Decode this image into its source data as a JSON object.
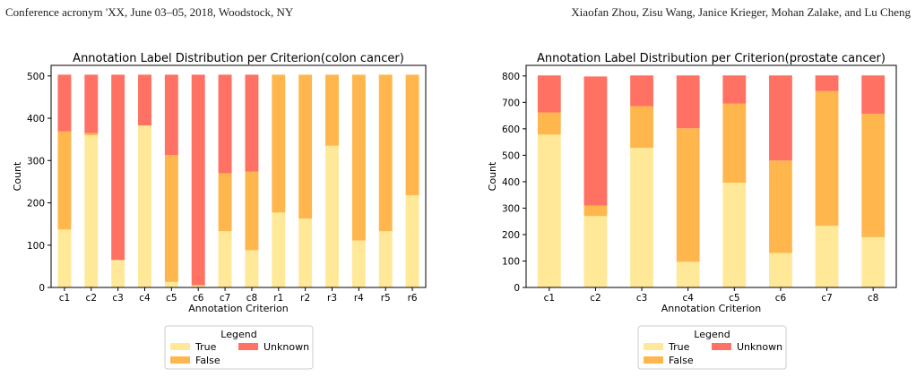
{
  "header": {
    "left": "Conference acronym 'XX, June 03–05, 2018, Woodstock, NY",
    "right": "Xiaofan Zhou, Zisu Wang, Janice Krieger, Mohan Zalake, and Lu Cheng"
  },
  "colors": {
    "True": "#FFE999",
    "False": "#FFB74D",
    "Unknown": "#FF7163"
  },
  "chart_data": [
    {
      "type": "bar",
      "stacked": true,
      "title": "Annotation Label Distribution per Criterion(colon cancer)",
      "xlabel": "Annotation Criterion",
      "ylabel": "Count",
      "ylim": [
        0,
        525
      ],
      "yticks": [
        0,
        100,
        200,
        300,
        400,
        500
      ],
      "categories": [
        "c1",
        "c2",
        "c3",
        "c4",
        "c5",
        "c6",
        "c7",
        "c8",
        "r1",
        "r2",
        "r3",
        "r4",
        "r5",
        "r6"
      ],
      "series": [
        {
          "name": "True",
          "values": [
            137,
            360,
            65,
            383,
            13,
            5,
            133,
            88,
            177,
            163,
            335,
            111,
            133,
            218
          ]
        },
        {
          "name": "False",
          "values": [
            232,
            5,
            0,
            0,
            300,
            0,
            137,
            186,
            326,
            340,
            168,
            392,
            370,
            285
          ]
        },
        {
          "name": "Unknown",
          "values": [
            134,
            138,
            438,
            120,
            190,
            498,
            233,
            229,
            0,
            0,
            0,
            0,
            0,
            0
          ]
        }
      ],
      "legend": {
        "title": "Legend",
        "position": "below",
        "entries": [
          "True",
          "False",
          "Unknown"
        ]
      }
    },
    {
      "type": "bar",
      "stacked": true,
      "title": "Annotation Label Distribution per Criterion(prostate cancer)",
      "xlabel": "Annotation Criterion",
      "ylabel": "Count",
      "ylim": [
        0,
        840
      ],
      "yticks": [
        0,
        100,
        200,
        300,
        400,
        500,
        600,
        700,
        800
      ],
      "categories": [
        "c1",
        "c2",
        "c3",
        "c4",
        "c5",
        "c6",
        "c7",
        "c8"
      ],
      "series": [
        {
          "name": "True",
          "values": [
            578,
            270,
            528,
            97,
            396,
            130,
            233,
            190
          ]
        },
        {
          "name": "False",
          "values": [
            84,
            40,
            158,
            505,
            300,
            350,
            510,
            467
          ]
        },
        {
          "name": "Unknown",
          "values": [
            140,
            488,
            116,
            200,
            106,
            322,
            59,
            145
          ]
        }
      ],
      "legend": {
        "title": "Legend",
        "position": "below",
        "entries": [
          "True",
          "False",
          "Unknown"
        ]
      }
    }
  ]
}
